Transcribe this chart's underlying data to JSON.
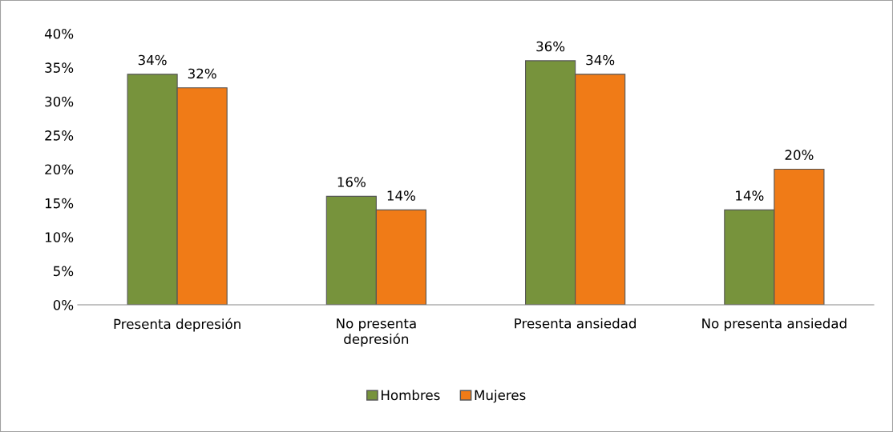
{
  "chart_data": {
    "type": "bar",
    "categories": [
      "Presenta depresión",
      "No presenta\ndepresión",
      "Presenta ansiedad",
      "No presenta ansiedad"
    ],
    "series": [
      {
        "name": "Hombres",
        "color": "#77933c",
        "values": [
          34,
          16,
          36,
          14
        ],
        "value_labels": [
          "34%",
          "16%",
          "36%",
          "14%"
        ]
      },
      {
        "name": "Mujeres",
        "color": "#f07b17",
        "values": [
          32,
          14,
          34,
          20
        ],
        "value_labels": [
          "32%",
          "14%",
          "34%",
          "20%"
        ]
      }
    ],
    "ylim": [
      0,
      40
    ],
    "yticks": [
      {
        "value": 0,
        "label": "0%"
      },
      {
        "value": 5,
        "label": "5%"
      },
      {
        "value": 10,
        "label": "10%"
      },
      {
        "value": 15,
        "label": "15%"
      },
      {
        "value": 20,
        "label": "20%"
      },
      {
        "value": 25,
        "label": "25%"
      },
      {
        "value": 30,
        "label": "30%"
      },
      {
        "value": 35,
        "label": "35%"
      },
      {
        "value": 40,
        "label": "40%"
      }
    ],
    "grid": false,
    "legend": "bottom"
  }
}
